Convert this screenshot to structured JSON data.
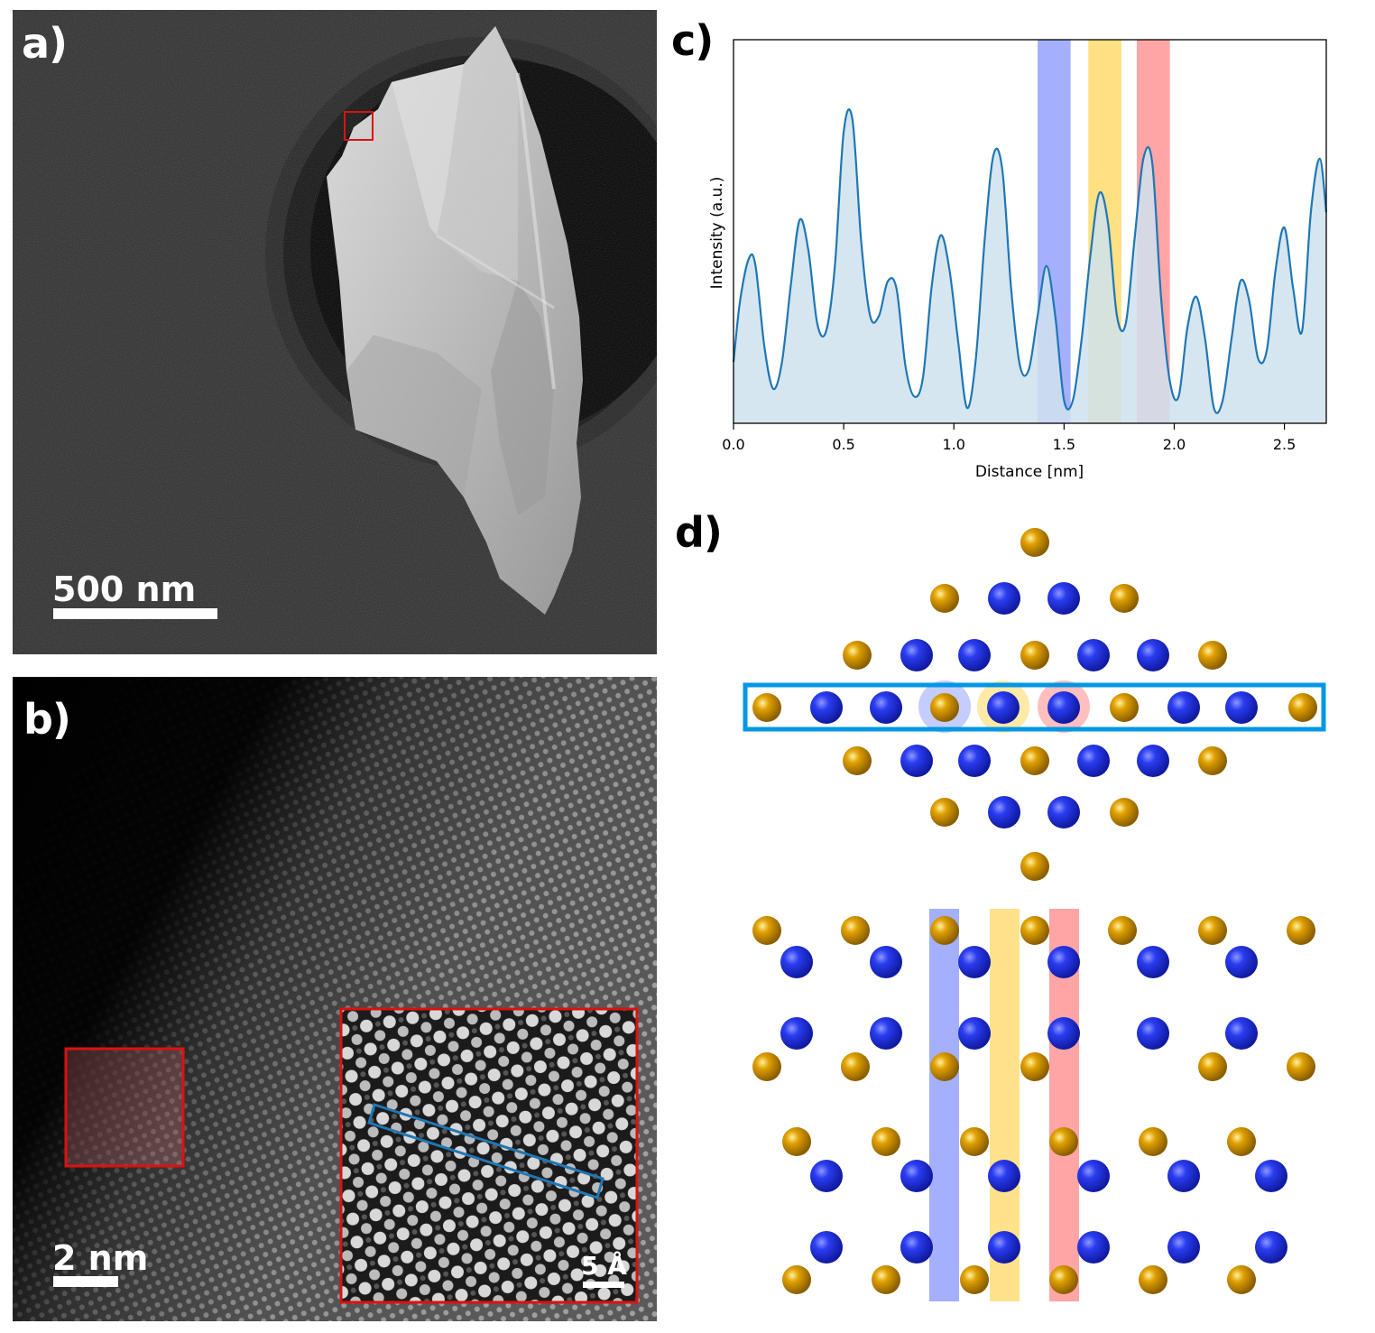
{
  "figure": {
    "panel_a": {
      "label": "a)",
      "scalebar": "500 nm"
    },
    "panel_b": {
      "label": "b)",
      "scalebar": "2 nm",
      "inset_scalebar": "5 Å"
    },
    "panel_c": {
      "label": "c)"
    },
    "panel_d": {
      "label": "d)"
    }
  },
  "colors": {
    "line": "#1f77b4",
    "fill": "#cfe2ef",
    "band_blue": "#7f8ffc",
    "band_yellow": "#ffd34d",
    "band_red": "#ff7f7f",
    "atom_blue": "#2a3cf0",
    "atom_gold": "#e0a000",
    "frame_blue": "#0097e6",
    "box_red": "#dd1111"
  },
  "chart_data": {
    "type": "area",
    "xlabel": "Distance [nm]",
    "ylabel": "Intensity (a.u.)",
    "xlim": [
      0,
      2.69
    ],
    "xticks": [
      "0.0",
      "0.5",
      "1.0",
      "1.5",
      "2.0",
      "2.5"
    ],
    "bands": [
      {
        "color": "blue",
        "x0": 1.38,
        "x1": 1.53
      },
      {
        "color": "yellow",
        "x0": 1.61,
        "x1": 1.76
      },
      {
        "color": "red",
        "x0": 1.83,
        "x1": 1.98
      }
    ],
    "x": [
      0.0,
      0.03,
      0.07,
      0.1,
      0.14,
      0.18,
      0.22,
      0.26,
      0.3,
      0.34,
      0.38,
      0.42,
      0.46,
      0.5,
      0.54,
      0.58,
      0.62,
      0.66,
      0.7,
      0.74,
      0.78,
      0.82,
      0.86,
      0.9,
      0.94,
      0.98,
      1.02,
      1.06,
      1.1,
      1.14,
      1.18,
      1.22,
      1.26,
      1.3,
      1.34,
      1.38,
      1.42,
      1.46,
      1.5,
      1.54,
      1.58,
      1.62,
      1.66,
      1.7,
      1.74,
      1.78,
      1.82,
      1.86,
      1.9,
      1.94,
      1.98,
      2.02,
      2.06,
      2.1,
      2.14,
      2.18,
      2.22,
      2.26,
      2.3,
      2.34,
      2.38,
      2.42,
      2.46,
      2.5,
      2.54,
      2.58,
      2.62,
      2.66,
      2.69
    ],
    "y": [
      0.16,
      0.32,
      0.43,
      0.41,
      0.2,
      0.09,
      0.16,
      0.36,
      0.53,
      0.45,
      0.26,
      0.24,
      0.41,
      0.76,
      0.79,
      0.47,
      0.28,
      0.28,
      0.37,
      0.35,
      0.15,
      0.07,
      0.12,
      0.36,
      0.49,
      0.4,
      0.21,
      0.04,
      0.17,
      0.48,
      0.7,
      0.66,
      0.35,
      0.15,
      0.14,
      0.28,
      0.41,
      0.28,
      0.06,
      0.06,
      0.22,
      0.44,
      0.6,
      0.52,
      0.28,
      0.26,
      0.48,
      0.69,
      0.68,
      0.33,
      0.11,
      0.07,
      0.25,
      0.33,
      0.22,
      0.04,
      0.06,
      0.22,
      0.37,
      0.32,
      0.17,
      0.19,
      0.4,
      0.51,
      0.35,
      0.24,
      0.55,
      0.69,
      0.55
    ]
  }
}
